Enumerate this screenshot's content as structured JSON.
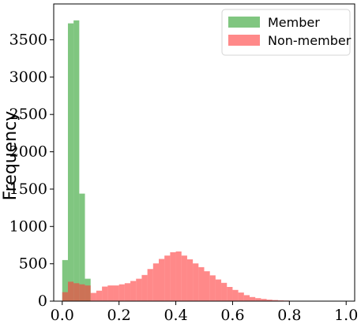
{
  "chart_data": {
    "type": "histogram",
    "xlabel": "",
    "ylabel": "Frequency",
    "xlim": [
      -0.03,
      1.03
    ],
    "ylim": [
      0,
      3980
    ],
    "xticks": [
      {
        "value": 0.0,
        "label": "0.0"
      },
      {
        "value": 0.2,
        "label": "0.2"
      },
      {
        "value": 0.4,
        "label": "0.4"
      },
      {
        "value": 0.6,
        "label": "0.6"
      },
      {
        "value": 0.8,
        "label": "0.8"
      },
      {
        "value": 1.0,
        "label": "1.0"
      }
    ],
    "yticks": [
      {
        "value": 0,
        "label": "0"
      },
      {
        "value": 500,
        "label": "500"
      },
      {
        "value": 1000,
        "label": "1000"
      },
      {
        "value": 1500,
        "label": "1500"
      },
      {
        "value": 2000,
        "label": "2000"
      },
      {
        "value": 2500,
        "label": "2500"
      },
      {
        "value": 3000,
        "label": "3000"
      },
      {
        "value": 3500,
        "label": "3500"
      }
    ],
    "legend_position": "top-right",
    "series": [
      {
        "name": "Member",
        "color": "#2ca02c",
        "bin_edges": [
          0.0,
          0.02,
          0.04,
          0.06,
          0.08,
          0.1
        ],
        "counts": [
          550,
          3720,
          3760,
          1440,
          300
        ]
      },
      {
        "name": "Non-member",
        "color": "#ff3b3b",
        "bin_edges": [
          0.0,
          0.02,
          0.04,
          0.06,
          0.08,
          0.1,
          0.12,
          0.14,
          0.16,
          0.18,
          0.2,
          0.22,
          0.24,
          0.26,
          0.28,
          0.3,
          0.32,
          0.34,
          0.36,
          0.38,
          0.4,
          0.42,
          0.44,
          0.46,
          0.48,
          0.5,
          0.52,
          0.54,
          0.56,
          0.58,
          0.6,
          0.62,
          0.64,
          0.66,
          0.68,
          0.7,
          0.72,
          0.74,
          0.76,
          0.78,
          0.8,
          0.82,
          0.84,
          0.86,
          0.88,
          0.9,
          0.92,
          0.94,
          0.96,
          0.98,
          1.0
        ],
        "counts": [
          120,
          260,
          240,
          225,
          210,
          110,
          140,
          195,
          210,
          210,
          225,
          240,
          270,
          300,
          350,
          430,
          505,
          565,
          610,
          655,
          665,
          610,
          560,
          505,
          455,
          400,
          345,
          290,
          245,
          190,
          150,
          115,
          80,
          55,
          40,
          30,
          20,
          15,
          10,
          8,
          5,
          4,
          3,
          2,
          2,
          1,
          1,
          1,
          1,
          1
        ]
      }
    ]
  }
}
